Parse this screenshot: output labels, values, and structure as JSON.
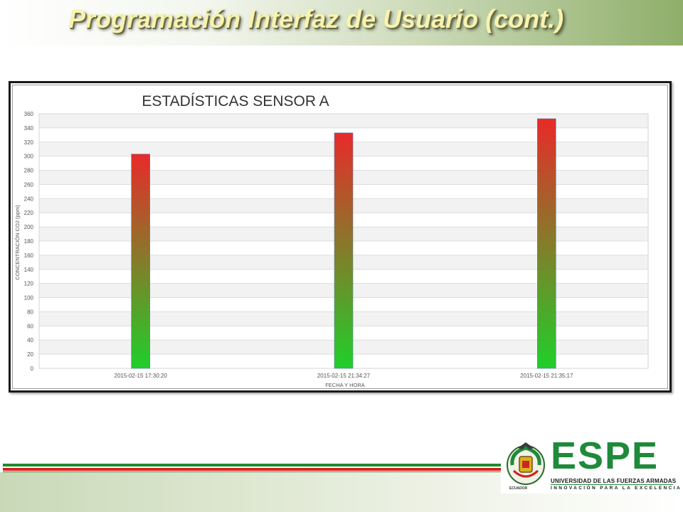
{
  "slide": {
    "title": "Programación Interfaz de Usuario (cont.)"
  },
  "logo": {
    "name": "ESPE",
    "subtitle": "UNIVERSIDAD DE LAS FUERZAS ARMADAS",
    "tagline": "INNOVACIÓN PARA LA EXCELENCIA",
    "crest_caption": "ECUADOR"
  },
  "colors": {
    "bar_top": "#e82a2a",
    "bar_bottom": "#1fcf2a",
    "title_text": "#f7f3b0",
    "brand_green": "#1e8a3a",
    "stripe_red": "#d42020"
  },
  "chart_data": {
    "type": "bar",
    "title": "ESTADÍSTICAS SENSOR A",
    "xlabel": "FECHA Y HORA",
    "ylabel": "CONCENTRACIÓN CO2 (ppm)",
    "categories": [
      "2015-02-15 17:30:20",
      "2015-02-15 21:34:27",
      "2015-02-15 21:35:17"
    ],
    "values": [
      303,
      333,
      353
    ],
    "ylim": [
      0,
      360
    ],
    "yticks": [
      0,
      20,
      40,
      60,
      80,
      100,
      120,
      140,
      160,
      180,
      200,
      220,
      240,
      260,
      280,
      300,
      320,
      340,
      360
    ],
    "grid": true,
    "alternating_bands": true,
    "bar_fill": "vertical gradient red to green",
    "legend": "none"
  }
}
